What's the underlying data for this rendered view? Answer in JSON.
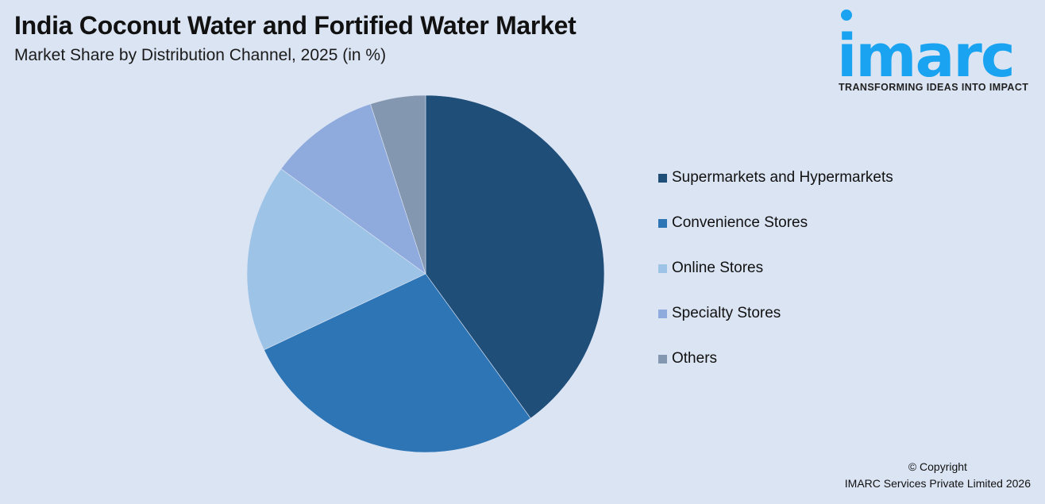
{
  "header": {
    "title": "India Coconut Water and Fortified Water Market",
    "subtitle": "Market Share by Distribution Channel, 2025 (in %)"
  },
  "logo": {
    "wordmark": "imarc",
    "tagline": "TRANSFORMING IDEAS INTO IMPACT",
    "color": "#1aa3f0"
  },
  "footer": {
    "copyright_line1": "© Copyright",
    "copyright_line2": "IMARC Services Private Limited 2026"
  },
  "chart_data": {
    "type": "pie",
    "title": "India Coconut Water and Fortified Water Market",
    "subtitle": "Market Share by Distribution Channel, 2025 (in %)",
    "categories": [
      "Supermarkets and Hypermarkets",
      "Convenience Stores",
      "Online Stores",
      "Specialty Stores",
      "Others"
    ],
    "values": [
      40,
      28,
      17,
      10,
      5
    ],
    "colors": [
      "#1f4e79",
      "#2e75b6",
      "#9dc3e6",
      "#8faadc",
      "#8497b0"
    ],
    "start_angle_deg": 0,
    "direction": "clockwise",
    "legend_position": "right",
    "data_labels": false
  }
}
